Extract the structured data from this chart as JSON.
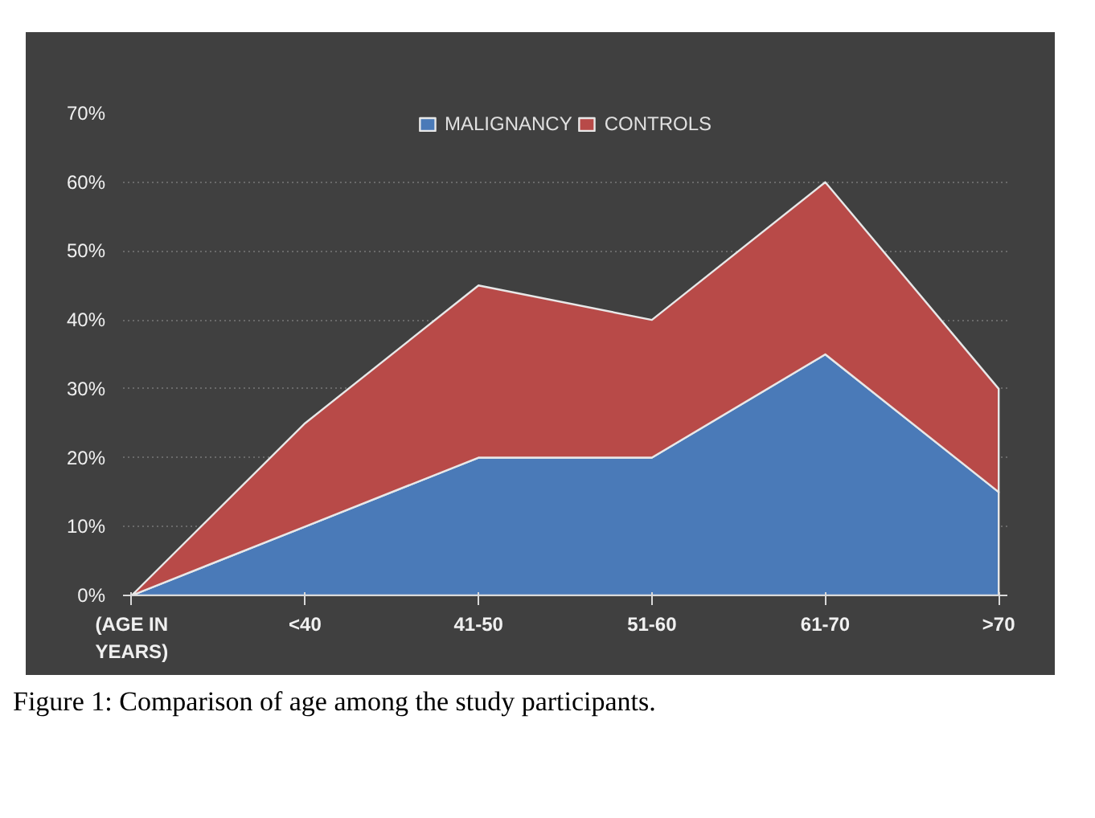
{
  "chart_data": {
    "type": "area",
    "stacked": true,
    "categories": [
      "(AGE IN YEARS)",
      "<40",
      "41-50",
      "51-60",
      "61-70",
      ">70"
    ],
    "series": [
      {
        "name": "MALIGNANCY",
        "color": "#4a7ab8",
        "values": [
          0,
          10,
          20,
          20,
          35,
          15
        ]
      },
      {
        "name": "CONTROLS",
        "color": "#b84a48",
        "values": [
          0,
          15,
          25,
          20,
          25,
          15
        ]
      }
    ],
    "ylim": [
      0,
      70
    ],
    "yticks": [
      {
        "value": 0,
        "label": "0%"
      },
      {
        "value": 10,
        "label": "10%"
      },
      {
        "value": 20,
        "label": "20%"
      },
      {
        "value": 30,
        "label": "30%"
      },
      {
        "value": 40,
        "label": "40%"
      },
      {
        "value": 50,
        "label": "50%"
      },
      {
        "value": 60,
        "label": "60%"
      },
      {
        "value": 70,
        "label": "70%"
      }
    ],
    "grid": "y",
    "legend": "top",
    "annotations": [
      "Figure 1: Comparison of age among the study participants."
    ]
  }
}
